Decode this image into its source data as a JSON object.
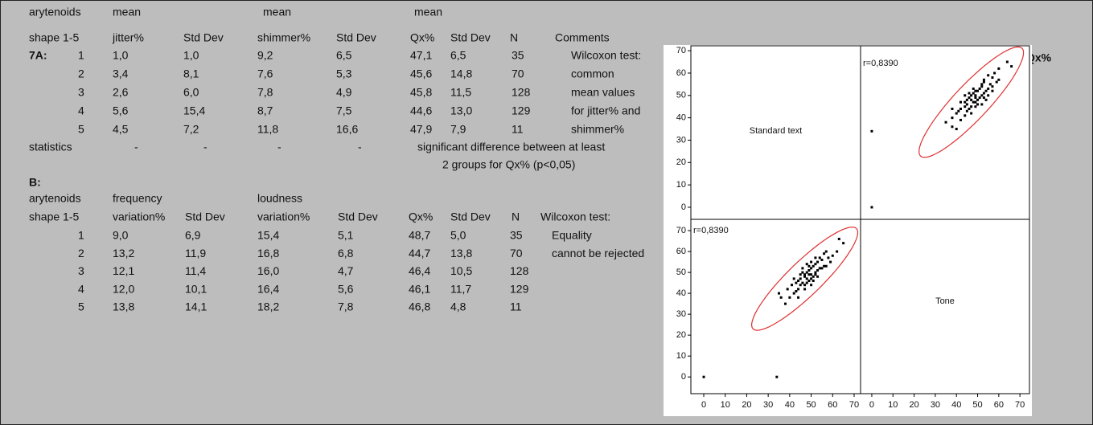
{
  "table_a": {
    "header": [
      [
        "arytenoids",
        null,
        "mean",
        null,
        "mean",
        null,
        "mean",
        null,
        null,
        null
      ],
      [
        "shape 1-5",
        null,
        "jitter%",
        "Std Dev",
        "shimmer%",
        "Std Dev",
        "Qx%",
        "Std Dev",
        "N",
        "Comments"
      ]
    ],
    "rows": [
      [
        "7A:",
        1,
        "1,0",
        "1,0",
        "9,2",
        "6,5",
        "47,1",
        "6,5",
        35,
        "Wilcoxon test:"
      ],
      [
        null,
        2,
        "3,4",
        "8,1",
        "7,6",
        "5,3",
        "45,6",
        "14,8",
        70,
        "common"
      ],
      [
        null,
        3,
        "2,6",
        "6,0",
        "7,8",
        "4,9",
        "45,8",
        "11,5",
        128,
        "mean values"
      ],
      [
        null,
        4,
        "5,6",
        "15,4",
        "8,7",
        "7,5",
        "44,6",
        "13,0",
        129,
        "for jitter% and"
      ],
      [
        null,
        5,
        "4,5",
        "7,2",
        "11,8",
        "16,6",
        "47,9",
        "7,9",
        11,
        "shimmer%"
      ]
    ],
    "statistics": {
      "label": "statistics",
      "dashes": [
        "-",
        "-",
        "-",
        "-"
      ],
      "note": [
        "significant difference between at least",
        "2 groups for Qx% (p<0,05)"
      ]
    },
    "side_label": "Qx%"
  },
  "table_b": {
    "title": "B:",
    "header": [
      [
        "arytenoids",
        "frequency",
        null,
        "loudness",
        null,
        null,
        null,
        null,
        null
      ],
      [
        "shape 1-5",
        "variation%",
        "Std Dev",
        "variation%",
        "Std Dev",
        "Qx%",
        "Std Dev",
        "N",
        "Wilcoxon test:"
      ]
    ],
    "rows": [
      [
        1,
        "9,0",
        "6,9",
        "15,4",
        "5,1",
        "48,7",
        "5,0",
        35,
        "Equality"
      ],
      [
        2,
        "13,2",
        "11,9",
        "16,8",
        "6,8",
        "44,7",
        "13,8",
        70,
        "cannot be rejected"
      ],
      [
        3,
        "12,1",
        "11,4",
        "16,0",
        "4,7",
        "46,4",
        "10,5",
        128,
        null
      ],
      [
        4,
        "12,0",
        "10,1",
        "16,4",
        "5,6",
        "46,1",
        "11,7",
        129,
        null
      ],
      [
        5,
        "13,8",
        "14,1",
        "18,2",
        "7,8",
        "46,8",
        "4,8",
        11,
        null
      ]
    ]
  },
  "chart_data": {
    "type": "scatter_matrix",
    "variables": [
      "Standard text",
      "Tone"
    ],
    "panels": [
      {
        "annotation": "r=0,8390",
        "xlim": [
          -5.3,
          74.5
        ],
        "ylim": [
          -5.4,
          72.2
        ]
      },
      {
        "annotation": "r=0,8390",
        "xlim": [
          -6,
          73
        ],
        "ylim": [
          -8,
          75.4
        ]
      }
    ],
    "xticks": [
      0,
      10,
      20,
      30,
      40,
      50,
      60,
      70
    ],
    "yticks": [
      0,
      10,
      20,
      30,
      40,
      50,
      60,
      70
    ],
    "color": "#000000",
    "ellipse_color": "#e03030",
    "x": [
      48,
      50,
      45,
      52,
      47,
      55,
      42,
      58,
      44,
      51,
      49,
      53,
      46,
      40,
      60,
      47,
      50,
      43,
      54,
      48,
      56,
      39,
      52,
      45,
      57,
      49,
      44,
      51,
      62,
      36,
      53,
      47,
      50,
      46,
      55,
      41,
      48,
      52,
      59,
      43,
      49,
      54,
      45,
      50,
      47,
      38,
      56,
      51,
      46,
      53,
      65,
      35,
      48,
      42,
      57,
      50,
      44,
      63,
      49,
      52,
      0,
      34
    ],
    "y": [
      47,
      52,
      44,
      50,
      49,
      56,
      40,
      57,
      46,
      48,
      51,
      55,
      45,
      38,
      58,
      44,
      49,
      45,
      52,
      50,
      53,
      42,
      54,
      47,
      60,
      46,
      42,
      53,
      60,
      38,
      51,
      48,
      47,
      50,
      52,
      44,
      45,
      49,
      55,
      41,
      53,
      57,
      49,
      55,
      42,
      35,
      59,
      46,
      52,
      48,
      64,
      40,
      54,
      47,
      53,
      44,
      38,
      66,
      49,
      57,
      0,
      0
    ]
  }
}
